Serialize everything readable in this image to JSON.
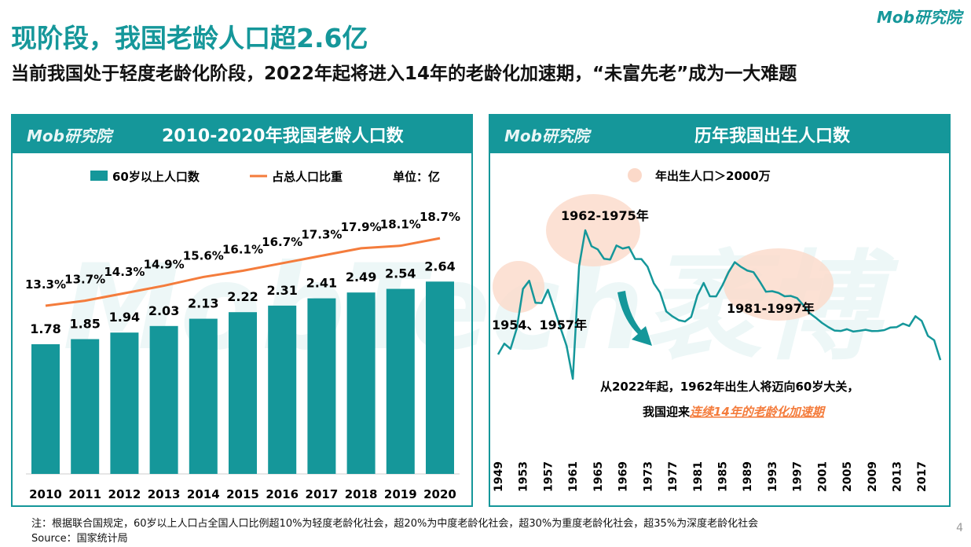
{
  "title": "现阶段，我国老龄人口超2.6亿",
  "subtitle": "当前我国处于轻度老龄化阶段，2022年起将进入14年的老龄化加速期，“未富先老”成为一大难题",
  "brand": "Mob研究院",
  "watermark": "MobTech袤博",
  "colors": {
    "teal": "#15979a",
    "orange": "#f47c3c",
    "highlight": "#fbd9c9"
  },
  "footer": {
    "note": "注：根据联合国规定，60岁以上人口占全国人口比例超10%为轻度老龄化社会，超20%为中度老龄化社会，超30%为重度老龄化社会，超35%为深度老龄化社会",
    "source": "Source：国家统计局",
    "page": "4"
  },
  "chart_data": [
    {
      "type": "bar",
      "title": "2010-2020年我国老龄人口数",
      "unit": "单位：亿",
      "categories": [
        "2010",
        "2011",
        "2012",
        "2013",
        "2014",
        "2015",
        "2016",
        "2017",
        "2018",
        "2019",
        "2020"
      ],
      "series": [
        {
          "name": "60岁以上人口数",
          "type": "bar",
          "values": [
            1.78,
            1.85,
            1.94,
            2.03,
            2.13,
            2.22,
            2.31,
            2.41,
            2.49,
            2.54,
            2.64
          ],
          "labels": [
            "1.78",
            "1.85",
            "1.94",
            "2.03",
            "2.13",
            "2.22",
            "2.31",
            "2.41",
            "2.49",
            "2.54",
            "2.64"
          ]
        },
        {
          "name": "占总人口比重",
          "type": "line",
          "values": [
            13.3,
            13.7,
            14.3,
            14.9,
            15.6,
            16.1,
            16.7,
            17.3,
            17.9,
            18.1,
            18.7
          ],
          "labels": [
            "13.3%",
            "13.7%",
            "14.3%",
            "14.9%",
            "15.6%",
            "16.1%",
            "16.7%",
            "17.3%",
            "17.9%",
            "18.1%",
            "18.7%"
          ]
        }
      ],
      "legend": "top"
    },
    {
      "type": "line",
      "title": "历年我国出生人口数",
      "legend_item": "年出生人口＞2000万",
      "x": [
        1949,
        1950,
        1951,
        1952,
        1953,
        1954,
        1955,
        1956,
        1957,
        1958,
        1959,
        1960,
        1961,
        1962,
        1963,
        1964,
        1965,
        1966,
        1967,
        1968,
        1969,
        1970,
        1971,
        1972,
        1973,
        1974,
        1975,
        1976,
        1977,
        1978,
        1979,
        1980,
        1981,
        1982,
        1983,
        1984,
        1985,
        1986,
        1987,
        1988,
        1989,
        1990,
        1991,
        1992,
        1993,
        1994,
        1995,
        1996,
        1997,
        1998,
        1999,
        2000,
        2001,
        2002,
        2003,
        2004,
        2005,
        2006,
        2007,
        2008,
        2009,
        2010,
        2011,
        2012,
        2013,
        2014,
        2015,
        2016,
        2017,
        2018,
        2019,
        2020
      ],
      "y": [
        1275,
        1419,
        1349,
        1622,
        2151,
        2260,
        1965,
        1961,
        2138,
        1889,
        1635,
        1389,
        949,
        2451,
        2934,
        2721,
        2679,
        2554,
        2543,
        2731,
        2690,
        2710,
        2551,
        2550,
        2447,
        2226,
        2102,
        1849,
        1783,
        1733,
        1715,
        1776,
        2064,
        2230,
        2052,
        2050,
        2196,
        2374,
        2508,
        2445,
        2396,
        2374,
        2250,
        2113,
        2120,
        2098,
        2052,
        2057,
        2028,
        1934,
        1827,
        1765,
        1696,
        1641,
        1594,
        1588,
        1612,
        1581,
        1591,
        1604,
        1587,
        1588,
        1600,
        1635,
        1640,
        1687,
        1655,
        1786,
        1723,
        1523,
        1465,
        1200
      ],
      "x_ticks": [
        "1949",
        "1953",
        "1957",
        "1961",
        "1965",
        "1969",
        "1973",
        "1977",
        "1981",
        "1985",
        "1989",
        "1993",
        "1997",
        "2001",
        "2005",
        "2009",
        "2013",
        "2017"
      ],
      "annotations": [
        "1962-1975年",
        "1954、1957年",
        "1981-1997年"
      ],
      "callout": {
        "line1": "从2022年起，1962年出生人将迈向60岁大关，",
        "line2_prefix": "我国迎来",
        "line2_highlight": "连续14年的老龄化加速期"
      }
    }
  ]
}
